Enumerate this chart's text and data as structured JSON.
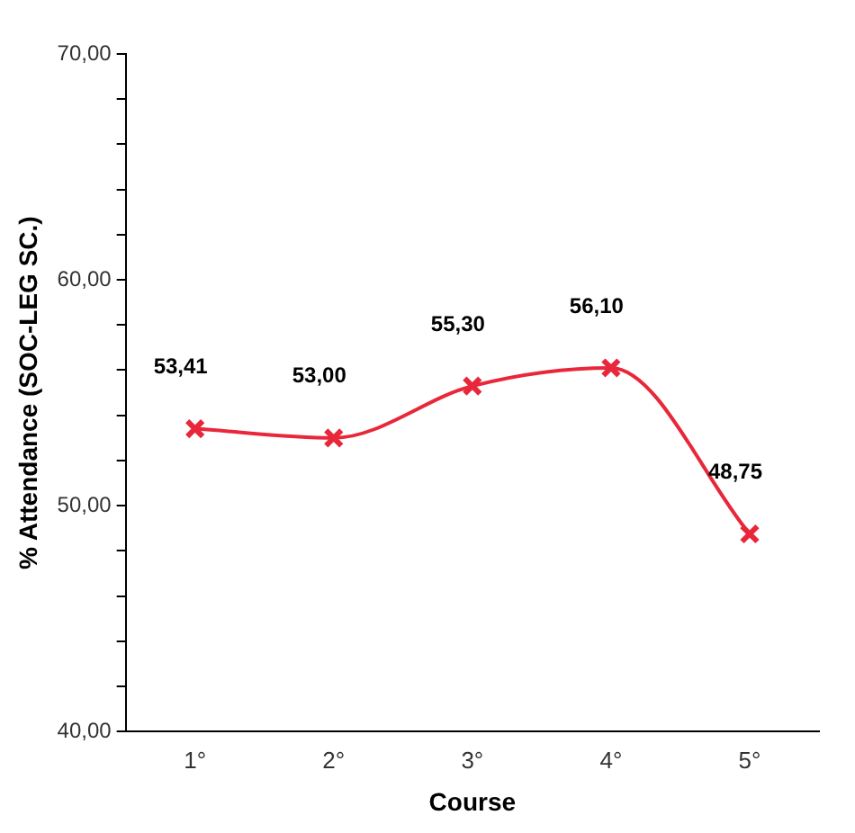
{
  "chart_data": {
    "type": "line",
    "xlabel": "Course",
    "ylabel": "% Attendance (SOC-LEG SC.)",
    "categories": [
      "1°",
      "2°",
      "3°",
      "4°",
      "5°"
    ],
    "series": [
      {
        "color": "#e8283a",
        "values": [
          53.41,
          53.0,
          55.3,
          56.1,
          48.75
        ],
        "value_labels": [
          "53,41",
          "53,00",
          "55,30",
          "56,10",
          "48,75"
        ]
      }
    ],
    "ylim": [
      40,
      70
    ],
    "yticks": [
      {
        "value": 40,
        "label": "40,00"
      },
      {
        "value": 42,
        "label": null
      },
      {
        "value": 44,
        "label": null
      },
      {
        "value": 46,
        "label": null
      },
      {
        "value": 48,
        "label": null
      },
      {
        "value": 50,
        "label": "50,00"
      },
      {
        "value": 52,
        "label": null
      },
      {
        "value": 54,
        "label": null
      },
      {
        "value": 56,
        "label": null
      },
      {
        "value": 58,
        "label": null
      },
      {
        "value": 60,
        "label": "60,00"
      },
      {
        "value": 62,
        "label": null
      },
      {
        "value": 64,
        "label": null
      },
      {
        "value": 66,
        "label": null
      },
      {
        "value": 68,
        "label": null
      },
      {
        "value": 70,
        "label": "70,00"
      }
    ],
    "grid": false,
    "legend": false,
    "marker": "cross",
    "line_style": "solid"
  }
}
